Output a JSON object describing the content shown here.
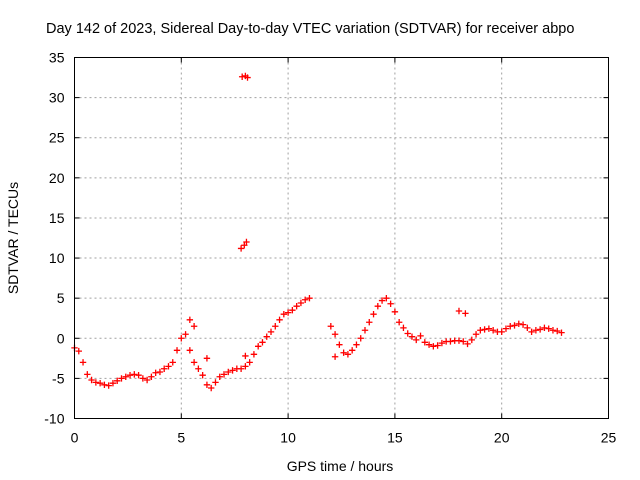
{
  "chart_data": {
    "type": "scatter",
    "title": "Day 142 of 2023, Sidereal Day-to-day VTEC variation (SDTVAR) for receiver abpo",
    "xlabel": "GPS time / hours",
    "ylabel": "SDTVAR / TECUs",
    "xlim": [
      0,
      25
    ],
    "ylim": [
      -10,
      35
    ],
    "xticks": [
      0,
      5,
      10,
      15,
      20,
      25
    ],
    "yticks": [
      -10,
      -5,
      0,
      5,
      10,
      15,
      20,
      25,
      30,
      35
    ],
    "xtick_labels": [
      "0",
      "5",
      "10",
      "15",
      "20",
      "25"
    ],
    "ytick_labels": [
      "-10",
      "-5",
      "0",
      "5",
      "10",
      "15",
      "20",
      "25",
      "30",
      "35"
    ],
    "grid": true,
    "marker": "+",
    "marker_color": "#ff0000",
    "series": [
      {
        "name": "SDTVAR",
        "x": [
          0.0,
          0.2,
          0.4,
          0.6,
          0.8,
          1.0,
          1.2,
          1.4,
          1.6,
          1.8,
          2.0,
          2.2,
          2.4,
          2.6,
          2.8,
          3.0,
          3.2,
          3.4,
          3.6,
          3.8,
          4.0,
          4.2,
          4.4,
          4.6,
          4.8,
          5.0,
          5.2,
          5.4,
          5.6,
          5.8,
          6.0,
          6.2,
          6.4,
          6.6,
          6.8,
          7.0,
          7.2,
          7.4,
          7.6,
          7.8,
          8.0,
          8.2,
          8.4,
          8.6,
          8.8,
          9.0,
          9.2,
          9.4,
          9.6,
          9.8,
          10.0,
          10.2,
          10.4,
          10.6,
          10.8,
          11.0,
          12.0,
          12.2,
          12.4,
          12.6,
          12.8,
          13.0,
          13.2,
          13.4,
          13.6,
          13.8,
          14.0,
          14.2,
          14.4,
          14.6,
          14.8,
          15.0,
          15.2,
          15.4,
          15.6,
          15.8,
          16.0,
          16.2,
          16.4,
          16.6,
          16.8,
          17.0,
          17.2,
          17.4,
          17.6,
          17.8,
          18.0,
          18.2,
          18.4,
          18.6,
          18.8,
          19.0,
          19.2,
          19.4,
          19.6,
          19.8,
          20.0,
          20.2,
          20.4,
          20.6,
          20.8,
          21.0,
          21.2,
          21.4,
          21.6,
          21.8,
          22.0,
          22.2,
          22.4,
          22.6,
          22.8,
          7.85,
          8.0,
          8.1,
          7.8,
          7.95,
          8.05,
          5.4,
          5.6,
          6.2,
          12.2,
          8.0,
          18.0,
          18.3
        ],
        "y": [
          -1.2,
          -1.6,
          -3.0,
          -4.5,
          -5.2,
          -5.5,
          -5.6,
          -5.8,
          -5.9,
          -5.6,
          -5.3,
          -5.0,
          -4.8,
          -4.6,
          -4.5,
          -4.6,
          -5.0,
          -5.2,
          -4.8,
          -4.3,
          -4.2,
          -3.8,
          -3.5,
          -3.0,
          -1.5,
          0.0,
          0.5,
          -1.5,
          -3.0,
          -3.8,
          -4.6,
          -5.8,
          -6.2,
          -5.5,
          -4.8,
          -4.5,
          -4.2,
          -4.0,
          -3.8,
          -3.8,
          -3.5,
          -3.0,
          -2.0,
          -1.0,
          -0.5,
          0.2,
          0.8,
          1.5,
          2.3,
          3.0,
          3.2,
          3.5,
          4.0,
          4.4,
          4.8,
          5.0,
          1.5,
          0.5,
          -0.8,
          -1.8,
          -2.0,
          -1.5,
          -0.8,
          0.0,
          1.0,
          2.0,
          3.0,
          4.0,
          4.7,
          5.0,
          4.3,
          3.3,
          2.0,
          1.3,
          0.6,
          0.2,
          -0.2,
          0.3,
          -0.5,
          -0.8,
          -1.0,
          -0.9,
          -0.6,
          -0.4,
          -0.4,
          -0.3,
          -0.3,
          -0.4,
          -0.7,
          -0.2,
          0.5,
          1.0,
          1.1,
          1.2,
          1.0,
          0.8,
          0.8,
          1.2,
          1.5,
          1.6,
          1.8,
          1.7,
          1.3,
          0.8,
          1.0,
          1.1,
          1.3,
          1.2,
          1.0,
          0.9,
          0.7,
          32.6,
          32.7,
          32.5,
          11.2,
          11.6,
          12.0,
          2.3,
          1.5,
          -2.5,
          -2.3,
          -2.2,
          3.4,
          3.1
        ]
      }
    ]
  }
}
